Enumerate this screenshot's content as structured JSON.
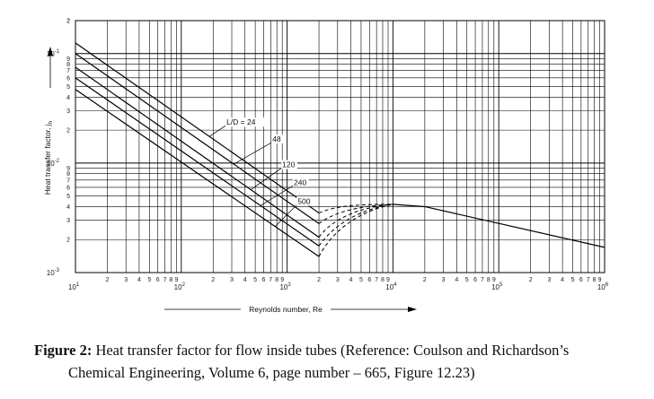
{
  "chart_data": {
    "type": "line",
    "title": "",
    "xlabel": "Reynolds number, Re",
    "ylabel": "Heat transfer factor, j",
    "ylabel_subscript": "h",
    "x_scale": "log",
    "y_scale": "log",
    "xlim": [
      10,
      1000000
    ],
    "ylim": [
      0.001,
      0.2
    ],
    "grid": true,
    "x_major_ticks": [
      {
        "v": 10,
        "base": "10",
        "exp": "1"
      },
      {
        "v": 100,
        "base": "10",
        "exp": "2"
      },
      {
        "v": 1000,
        "base": "10",
        "exp": "3"
      },
      {
        "v": 10000,
        "base": "10",
        "exp": "4"
      },
      {
        "v": 100000,
        "base": "10",
        "exp": "5"
      },
      {
        "v": 1000000,
        "base": "10",
        "exp": "6"
      }
    ],
    "x_minor_labels": [
      "2",
      "3",
      "4",
      "5",
      "6",
      "7",
      "8",
      "9"
    ],
    "y_major_ticks": [
      {
        "v": 0.001,
        "base": "10",
        "exp": "-3"
      },
      {
        "v": 0.01,
        "base": "10",
        "exp": "-2"
      },
      {
        "v": 0.1,
        "base": "10",
        "exp": "-1"
      }
    ],
    "y_minor_labels": [
      "2",
      "3",
      "4",
      "5",
      "6",
      "7",
      "8",
      "9"
    ],
    "y_top_label": {
      "v": 0.2,
      "label": "2"
    },
    "series": [
      {
        "name": "L/D = 24",
        "label_text": "L/D = 24",
        "laminar": [
          [
            10,
            0.125
          ],
          [
            2000,
            0.0035
          ]
        ]
      },
      {
        "name": "48",
        "label_text": "48",
        "laminar": [
          [
            10,
            0.1
          ],
          [
            2000,
            0.0028
          ]
        ]
      },
      {
        "name": "120",
        "label_text": "120",
        "laminar": [
          [
            10,
            0.075
          ],
          [
            2000,
            0.0021
          ]
        ]
      },
      {
        "name": "240",
        "label_text": "240",
        "laminar": [
          [
            10,
            0.06
          ],
          [
            2000,
            0.00175
          ]
        ]
      },
      {
        "name": "500",
        "label_text": "500",
        "laminar": [
          [
            10,
            0.047
          ],
          [
            2000,
            0.0014
          ]
        ]
      }
    ],
    "transition": {
      "style": "dashed",
      "end": [
        10000,
        0.0042
      ],
      "via": [
        [
          [
            3000,
            0.0042
          ],
          [
            6000,
            0.0042
          ]
        ],
        [
          [
            3000,
            0.0038
          ],
          [
            6000,
            0.0041
          ]
        ],
        [
          [
            2800,
            0.0033
          ],
          [
            5500,
            0.004
          ]
        ],
        [
          [
            2800,
            0.0028
          ],
          [
            5000,
            0.0038
          ]
        ],
        [
          [
            2600,
            0.0023
          ],
          [
            4500,
            0.0036
          ]
        ]
      ]
    },
    "turbulent": [
      [
        10000,
        0.0042
      ],
      [
        20000,
        0.004
      ],
      [
        1000000,
        0.0017
      ]
    ]
  },
  "caption": {
    "label": "Figure 2:",
    "line1": "Heat transfer factor for flow inside tubes (Reference: Coulson and Richardson’s",
    "line2": "Chemical Engineering, Volume 6, page number – 665, Figure 12.23)"
  }
}
